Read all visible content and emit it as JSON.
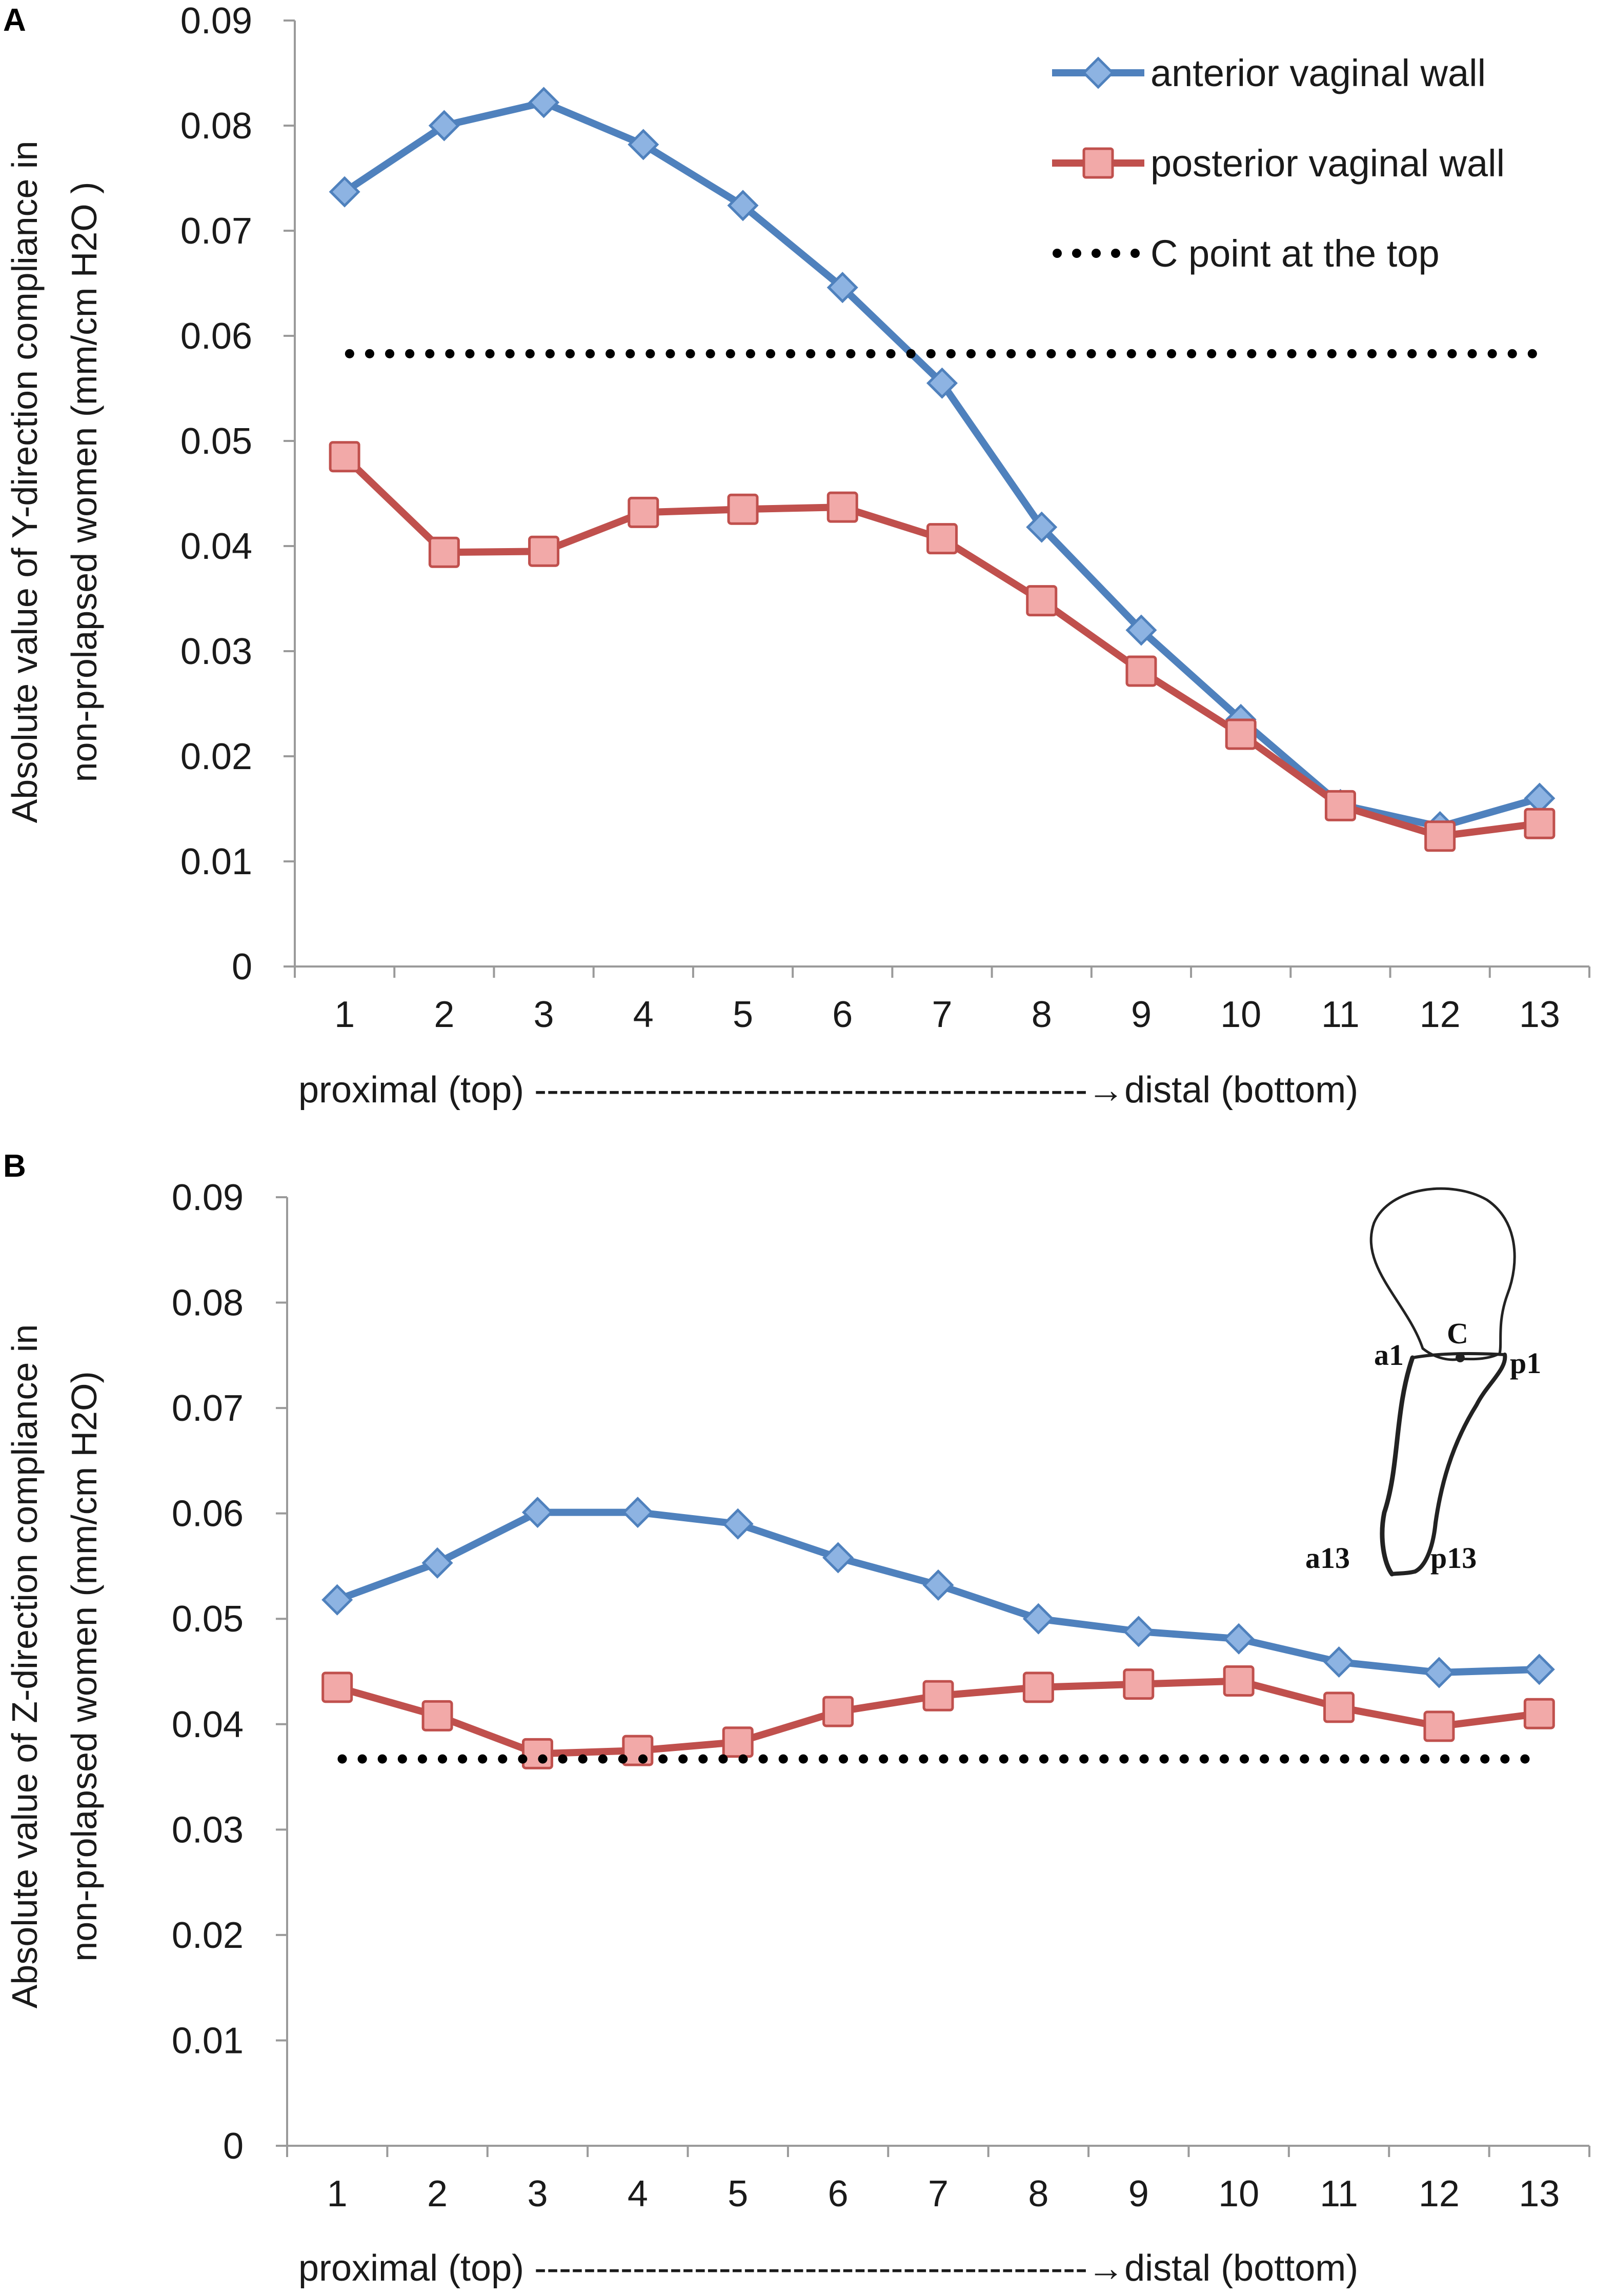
{
  "colors": {
    "anterior": "#4F81BD",
    "anterior_fill": "#8DB3E2",
    "posterior": "#C0504D",
    "posterior_fill": "#F2A9A8",
    "c_point": "#000000",
    "axis": "#9a9a9a"
  },
  "icons": [
    "diamond-marker-icon",
    "square-marker-icon",
    "dotted-line-icon",
    "vaginal-anatomy-diagram-icon"
  ],
  "chart_data": [
    {
      "panel": "A",
      "type": "line",
      "categories": [
        "1",
        "2",
        "3",
        "4",
        "5",
        "6",
        "7",
        "8",
        "9",
        "10",
        "11",
        "12",
        "13"
      ],
      "ylim": [
        0,
        0.09
      ],
      "yticks": [
        "0",
        "0.01",
        "0.02",
        "0.03",
        "0.04",
        "0.05",
        "0.06",
        "0.07",
        "0.08",
        "0.09"
      ],
      "ylabel_line1": "Absolute value of Y-direction compliance in",
      "ylabel_line2": "non-prolapsed women (mm/cm H2O )",
      "xlabel": "proximal (top) ---------------------------------------------→distal (bottom)",
      "legend_position": "top-right",
      "series": [
        {
          "name": "anterior vaginal wall",
          "marker": "diamond",
          "values": [
            0.0737,
            0.08,
            0.0822,
            0.0782,
            0.0724,
            0.0646,
            0.0555,
            0.0418,
            0.032,
            0.0235,
            0.0154,
            0.0133,
            0.016
          ]
        },
        {
          "name": "posterior vaginal wall",
          "marker": "square",
          "values": [
            0.0485,
            0.0394,
            0.0395,
            0.0432,
            0.0435,
            0.0437,
            0.0407,
            0.0348,
            0.0281,
            0.0221,
            0.0153,
            0.0124,
            0.0136
          ]
        },
        {
          "name": "C point at the top",
          "marker": "dotted",
          "values": [
            0.0583,
            0.0583,
            0.0583,
            0.0583,
            0.0583,
            0.0583,
            0.0583,
            0.0583,
            0.0583,
            0.0583,
            0.0583,
            0.0583,
            0.0583
          ]
        }
      ]
    },
    {
      "panel": "B",
      "type": "line",
      "categories": [
        "1",
        "2",
        "3",
        "4",
        "5",
        "6",
        "7",
        "8",
        "9",
        "10",
        "11",
        "12",
        "13"
      ],
      "ylim": [
        0,
        0.09
      ],
      "yticks": [
        "0",
        "0.01",
        "0.02",
        "0.03",
        "0.04",
        "0.05",
        "0.06",
        "0.07",
        "0.08",
        "0.09"
      ],
      "ylabel_line1": "Absolute value of Z-direction compliance in",
      "ylabel_line2": "non-prolapsed women (mm/cm H2O)",
      "xlabel": "proximal (top) ---------------------------------------------→distal (bottom)",
      "inset_labels": {
        "c": "C",
        "a1": "a1",
        "p1": "p1",
        "a13": "a13",
        "p13": "p13"
      },
      "series": [
        {
          "name": "anterior vaginal wall",
          "marker": "diamond",
          "values": [
            0.0518,
            0.0553,
            0.0601,
            0.0601,
            0.059,
            0.0558,
            0.0532,
            0.05,
            0.0488,
            0.0481,
            0.0459,
            0.0449,
            0.0452
          ]
        },
        {
          "name": "posterior vaginal wall",
          "marker": "square",
          "values": [
            0.0435,
            0.0408,
            0.0372,
            0.0375,
            0.0383,
            0.0412,
            0.0427,
            0.0435,
            0.0438,
            0.0441,
            0.0416,
            0.0398,
            0.041
          ]
        },
        {
          "name": "C point at the top",
          "marker": "dotted",
          "values": [
            0.0367,
            0.0367,
            0.0367,
            0.0367,
            0.0367,
            0.0367,
            0.0367,
            0.0367,
            0.0367,
            0.0367,
            0.0367,
            0.0367,
            0.0367
          ]
        }
      ]
    }
  ]
}
